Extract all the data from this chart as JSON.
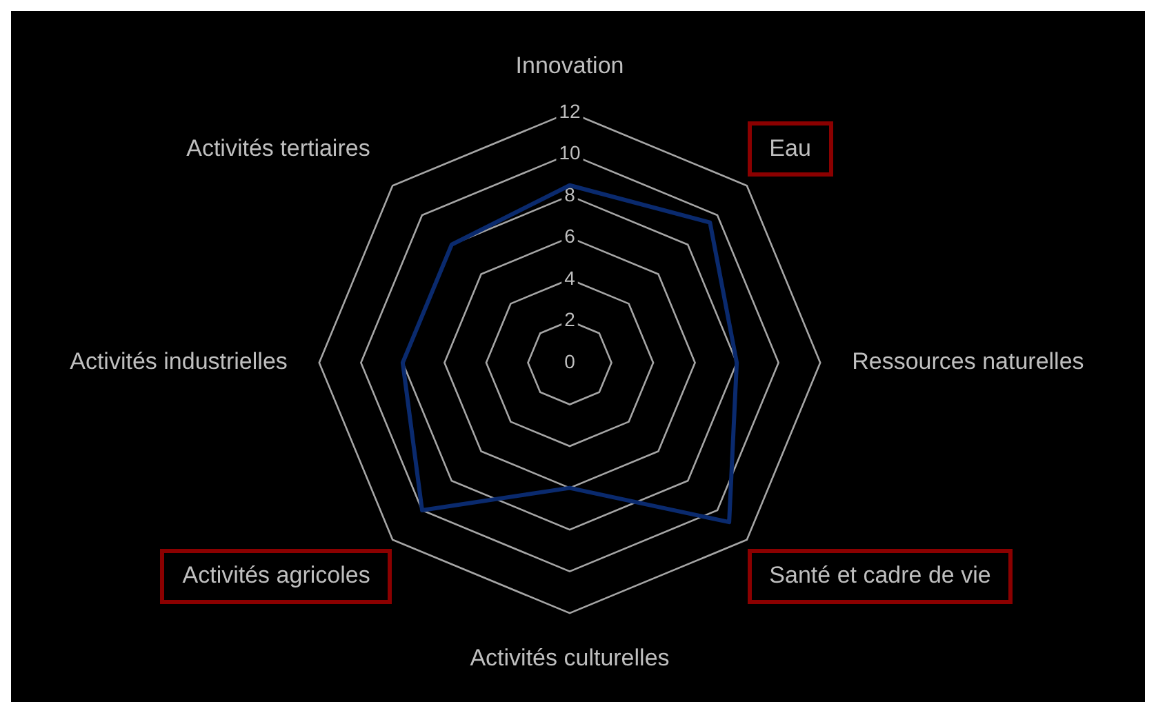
{
  "chart_data": {
    "type": "radar",
    "categories": [
      "Innovation",
      "Eau",
      "Ressources naturelles",
      "Santé et cadre de vie",
      "Activités culturelles",
      "Activités agricoles",
      "Activités industrielles",
      "Activités tertiaires"
    ],
    "series": [
      {
        "color": "#0a2a6e",
        "values": [
          8.5,
          9.5,
          8,
          10.8,
          6,
          10,
          8,
          8
        ]
      }
    ],
    "ylim": [
      0,
      12
    ],
    "yticks": [
      0,
      2,
      4,
      6,
      8,
      10,
      12
    ],
    "grid": true,
    "marker": "none",
    "legend": false
  }
}
